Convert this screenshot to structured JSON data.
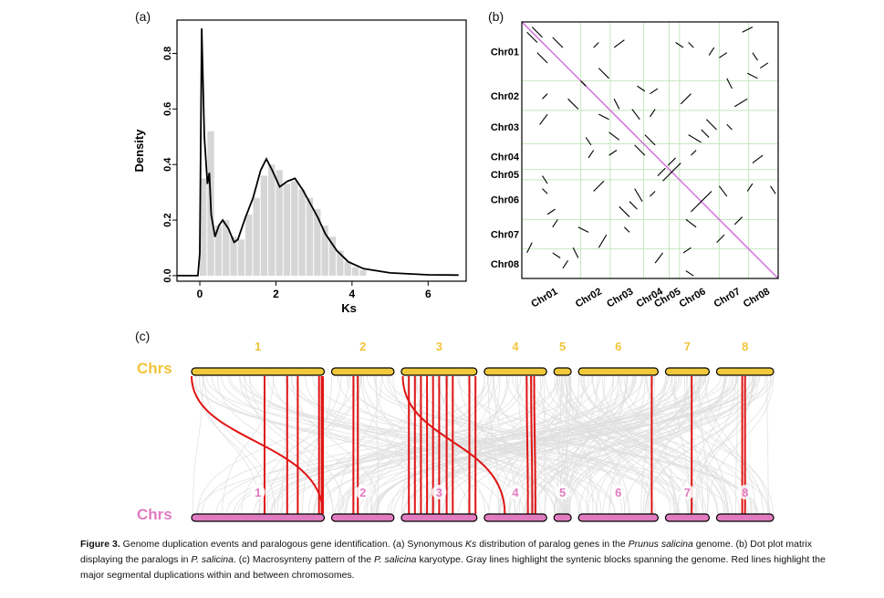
{
  "panels": {
    "a": "(a)",
    "b": "(b)",
    "c": "(c)"
  },
  "chart_data": [
    {
      "type": "area",
      "panel": "a",
      "xlabel": "Ks",
      "ylabel": "Density",
      "xlim": [
        -0.6,
        7.0
      ],
      "ylim": [
        -0.02,
        0.92
      ],
      "xticks": [
        0,
        2,
        4,
        6
      ],
      "yticks": [
        0.0,
        0.2,
        0.4,
        0.6,
        0.8
      ],
      "histogram": {
        "bin_width": 0.2,
        "bins": [
          {
            "x": 0.0,
            "y": 0.35
          },
          {
            "x": 0.2,
            "y": 0.52
          },
          {
            "x": 0.4,
            "y": 0.18
          },
          {
            "x": 0.6,
            "y": 0.2
          },
          {
            "x": 0.8,
            "y": 0.14
          },
          {
            "x": 1.0,
            "y": 0.13
          },
          {
            "x": 1.2,
            "y": 0.22
          },
          {
            "x": 1.4,
            "y": 0.28
          },
          {
            "x": 1.6,
            "y": 0.36
          },
          {
            "x": 1.8,
            "y": 0.4
          },
          {
            "x": 2.0,
            "y": 0.38
          },
          {
            "x": 2.2,
            "y": 0.33
          },
          {
            "x": 2.4,
            "y": 0.34
          },
          {
            "x": 2.6,
            "y": 0.31
          },
          {
            "x": 2.8,
            "y": 0.28
          },
          {
            "x": 3.0,
            "y": 0.24
          },
          {
            "x": 3.2,
            "y": 0.18
          },
          {
            "x": 3.4,
            "y": 0.14
          },
          {
            "x": 3.6,
            "y": 0.09
          },
          {
            "x": 3.8,
            "y": 0.05
          },
          {
            "x": 4.0,
            "y": 0.03
          },
          {
            "x": 4.2,
            "y": 0.02
          }
        ]
      },
      "density_curve": [
        [
          -0.6,
          0.0
        ],
        [
          -0.05,
          0.0
        ],
        [
          0.0,
          0.08
        ],
        [
          0.05,
          0.89
        ],
        [
          0.12,
          0.5
        ],
        [
          0.2,
          0.33
        ],
        [
          0.25,
          0.37
        ],
        [
          0.3,
          0.22
        ],
        [
          0.4,
          0.14
        ],
        [
          0.5,
          0.18
        ],
        [
          0.6,
          0.2
        ],
        [
          0.75,
          0.17
        ],
        [
          0.9,
          0.12
        ],
        [
          1.0,
          0.13
        ],
        [
          1.2,
          0.21
        ],
        [
          1.4,
          0.28
        ],
        [
          1.6,
          0.38
        ],
        [
          1.75,
          0.42
        ],
        [
          1.9,
          0.38
        ],
        [
          2.1,
          0.32
        ],
        [
          2.3,
          0.34
        ],
        [
          2.5,
          0.35
        ],
        [
          2.7,
          0.31
        ],
        [
          2.9,
          0.26
        ],
        [
          3.1,
          0.21
        ],
        [
          3.3,
          0.15
        ],
        [
          3.6,
          0.09
        ],
        [
          3.9,
          0.05
        ],
        [
          4.3,
          0.025
        ],
        [
          5.0,
          0.01
        ],
        [
          6.0,
          0.003
        ],
        [
          6.8,
          0.002
        ]
      ]
    },
    {
      "type": "scatter",
      "panel": "b",
      "chromosomes": [
        "Chr01",
        "Chr02",
        "Chr03",
        "Chr04",
        "Chr05",
        "Chr06",
        "Chr07",
        "Chr08"
      ],
      "chromosome_bounds": [
        0,
        0.23,
        0.345,
        0.475,
        0.575,
        0.615,
        0.77,
        0.885,
        1.0
      ],
      "diagonal_color": "#d36de0",
      "grid_color": "#c8e6c0",
      "segments": [
        [
          0.04,
          0.98,
          0.08,
          0.94
        ],
        [
          0.12,
          0.94,
          0.16,
          0.9
        ],
        [
          0.3,
          0.82,
          0.34,
          0.78
        ],
        [
          0.43,
          0.66,
          0.46,
          0.62
        ],
        [
          0.48,
          0.56,
          0.52,
          0.52
        ],
        [
          0.62,
          0.68,
          0.66,
          0.72
        ],
        [
          0.72,
          0.62,
          0.76,
          0.58
        ],
        [
          0.8,
          0.78,
          0.82,
          0.74
        ],
        [
          0.93,
          0.82,
          0.96,
          0.84
        ],
        [
          0.86,
          0.96,
          0.9,
          0.98
        ],
        [
          0.6,
          0.92,
          0.63,
          0.9
        ],
        [
          0.28,
          0.9,
          0.3,
          0.92
        ],
        [
          0.2,
          0.12,
          0.22,
          0.08
        ],
        [
          0.3,
          0.12,
          0.33,
          0.17
        ],
        [
          0.44,
          0.35,
          0.47,
          0.3
        ],
        [
          0.55,
          0.38,
          0.59,
          0.42
        ],
        [
          0.66,
          0.26,
          0.7,
          0.3
        ],
        [
          0.77,
          0.36,
          0.8,
          0.32
        ],
        [
          0.08,
          0.35,
          0.1,
          0.33
        ],
        [
          0.07,
          0.6,
          0.1,
          0.64
        ],
        [
          0.36,
          0.7,
          0.38,
          0.66
        ],
        [
          0.5,
          0.72,
          0.53,
          0.74
        ],
        [
          0.9,
          0.45,
          0.94,
          0.48
        ],
        [
          0.83,
          0.21,
          0.86,
          0.24
        ],
        [
          0.63,
          0.1,
          0.66,
          0.12
        ],
        [
          0.12,
          0.1,
          0.15,
          0.08
        ],
        [
          0.7,
          0.58,
          0.73,
          0.55
        ],
        [
          0.57,
          0.44,
          0.6,
          0.47
        ],
        [
          0.25,
          0.55,
          0.27,
          0.52
        ],
        [
          0.34,
          0.48,
          0.37,
          0.5
        ],
        [
          0.1,
          0.25,
          0.13,
          0.27
        ],
        [
          0.77,
          0.86,
          0.8,
          0.88
        ],
        [
          0.97,
          0.36,
          0.99,
          0.33
        ],
        [
          0.23,
          0.77,
          0.25,
          0.75
        ],
        [
          0.4,
          0.2,
          0.42,
          0.18
        ],
        [
          0.66,
          0.48,
          0.68,
          0.5
        ]
      ]
    }
  ],
  "karyotype": {
    "top_row_label": "Chrs",
    "bottom_row_label": "Chrs",
    "top_color": "#f0c93a",
    "top_label_color": "#f2c43a",
    "bottom_color": "#e07bc0",
    "bottom_label_color": "#e07bc0",
    "chromosome_numbers": [
      "1",
      "2",
      "3",
      "4",
      "5",
      "6",
      "7",
      "8"
    ],
    "chromosome_lengths": [
      1.0,
      0.47,
      0.57,
      0.47,
      0.13,
      0.6,
      0.33,
      0.43
    ],
    "red_links": [
      [
        0,
        0.0,
        0,
        0.99
      ],
      [
        0,
        0.55,
        0,
        0.55
      ],
      [
        0,
        0.72,
        0,
        0.72
      ],
      [
        0,
        0.96,
        0,
        0.96
      ],
      [
        0,
        0.98,
        0,
        0.98
      ],
      [
        0,
        0.99,
        0,
        0.99
      ],
      [
        0,
        0.8,
        0,
        0.8
      ],
      [
        1,
        0.35,
        1,
        0.35
      ],
      [
        1,
        0.42,
        1,
        0.42
      ],
      [
        2,
        0.02,
        3,
        0.33
      ],
      [
        2,
        0.1,
        2,
        0.1
      ],
      [
        2,
        0.18,
        2,
        0.18
      ],
      [
        2,
        0.26,
        2,
        0.26
      ],
      [
        2,
        0.34,
        2,
        0.34
      ],
      [
        2,
        0.42,
        2,
        0.42
      ],
      [
        2,
        0.5,
        2,
        0.5
      ],
      [
        2,
        0.6,
        2,
        0.6
      ],
      [
        2,
        0.68,
        2,
        0.68
      ],
      [
        2,
        0.9,
        2,
        0.9
      ],
      [
        2,
        0.98,
        2,
        0.98
      ],
      [
        3,
        0.68,
        3,
        0.7
      ],
      [
        3,
        0.75,
        3,
        0.77
      ],
      [
        3,
        0.8,
        3,
        0.82
      ],
      [
        5,
        0.92,
        5,
        0.92
      ],
      [
        6,
        0.6,
        6,
        0.6
      ],
      [
        7,
        0.45,
        7,
        0.45
      ],
      [
        7,
        0.5,
        7,
        0.5
      ]
    ]
  },
  "caption": {
    "label": "Figure 3.",
    "text_1": " Genome duplication events and paralogous gene identification. (a) Synonymous ",
    "italic_ks": "Ks",
    "text_2": " distribution of paralog genes in the ",
    "italic_species": "Prunus salicina",
    "text_3": " genome. (b) Dot plot matrix displaying the paralogs in ",
    "italic_p1": "P. salicina",
    "text_4": ". (c) Macrosynteny pattern of the ",
    "italic_p2": "P. salicina",
    "text_5": " karyotype. Gray lines highlight the syntenic blocks spanning the genome. Red lines highlight the major segmental duplications within and between chromosomes."
  }
}
